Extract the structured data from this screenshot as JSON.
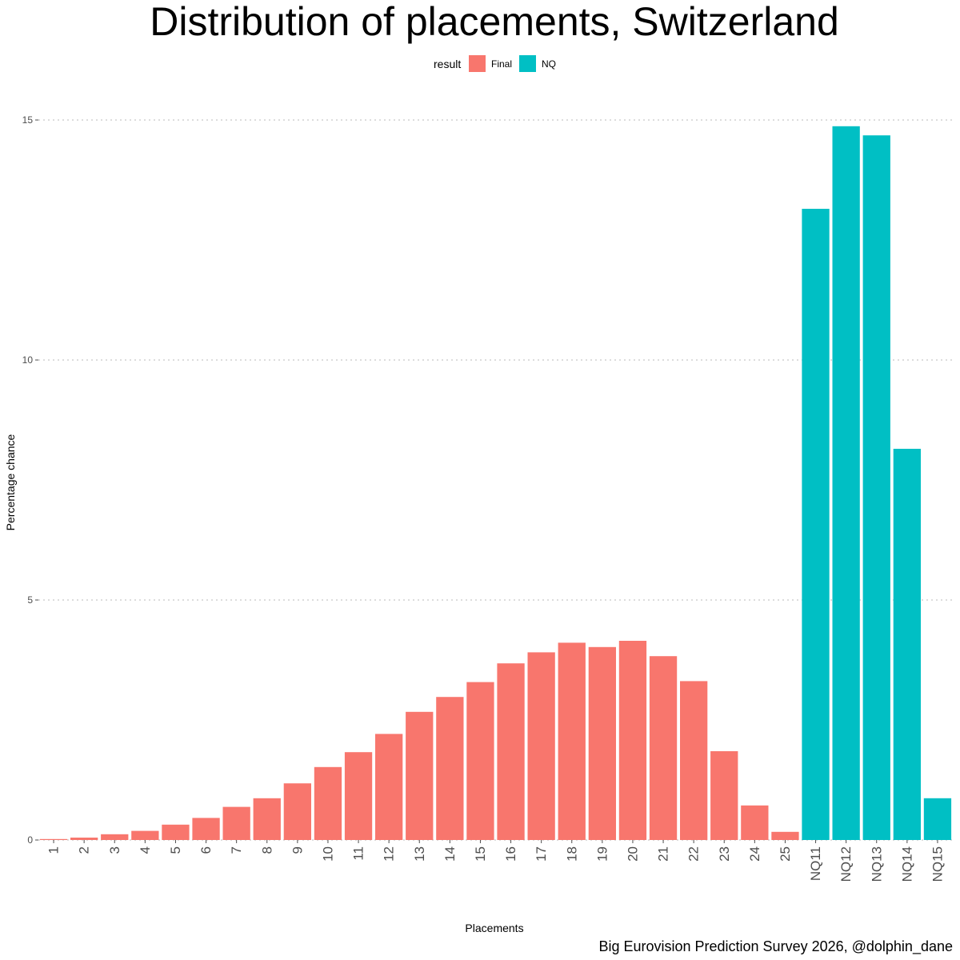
{
  "chart_data": {
    "type": "bar",
    "title": "Distribution of placements, Switzerland",
    "xlabel": "Placements",
    "ylabel": "Percentage chance",
    "ylim": [
      0,
      15
    ],
    "yticks": [
      0,
      5,
      10,
      15
    ],
    "grid": "horizontal dotted",
    "legend": {
      "title": "result",
      "position": "top",
      "items": [
        {
          "label": "Final",
          "color": "#F8766D"
        },
        {
          "label": "NQ",
          "color": "#00BFC4"
        }
      ]
    },
    "caption": "Big Eurovision Prediction Survey 2026, @dolphin_dane",
    "categories": [
      "1",
      "2",
      "3",
      "4",
      "5",
      "6",
      "7",
      "8",
      "9",
      "10",
      "11",
      "12",
      "13",
      "14",
      "15",
      "16",
      "17",
      "18",
      "19",
      "20",
      "21",
      "22",
      "23",
      "24",
      "25",
      "NQ11",
      "NQ12",
      "NQ13",
      "NQ14",
      "NQ15"
    ],
    "values": [
      0.02,
      0.05,
      0.12,
      0.19,
      0.32,
      0.46,
      0.69,
      0.87,
      1.18,
      1.52,
      1.83,
      2.21,
      2.67,
      2.98,
      3.29,
      3.68,
      3.91,
      4.11,
      4.02,
      4.15,
      3.83,
      3.31,
      1.85,
      0.72,
      0.17,
      13.15,
      14.87,
      14.68,
      8.15,
      0.87
    ],
    "groups": [
      "Final",
      "Final",
      "Final",
      "Final",
      "Final",
      "Final",
      "Final",
      "Final",
      "Final",
      "Final",
      "Final",
      "Final",
      "Final",
      "Final",
      "Final",
      "Final",
      "Final",
      "Final",
      "Final",
      "Final",
      "Final",
      "Final",
      "Final",
      "Final",
      "Final",
      "NQ",
      "NQ",
      "NQ",
      "NQ",
      "NQ"
    ]
  }
}
